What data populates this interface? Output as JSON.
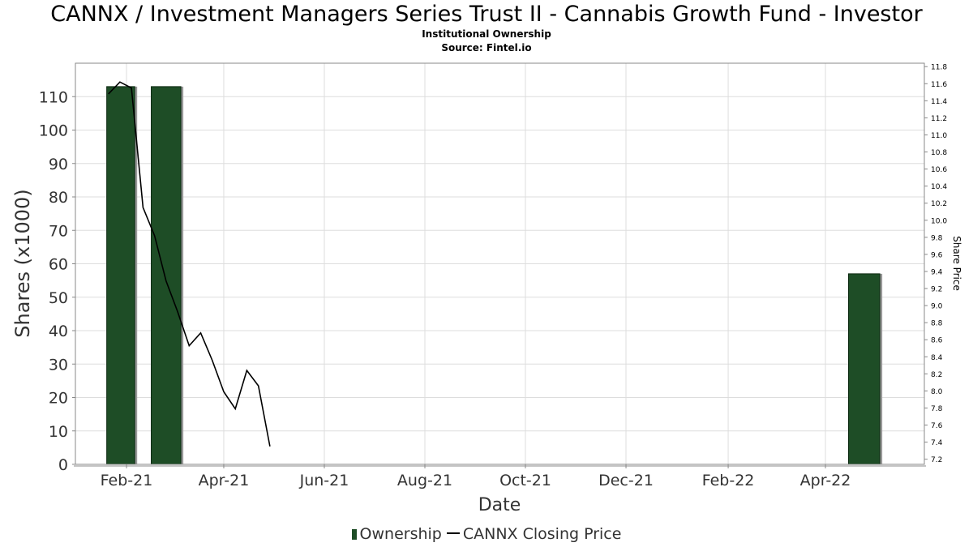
{
  "title": "CANNX / Investment Managers Series Trust II - Cannabis Growth Fund - Investor",
  "subtitle_1": "Institutional Ownership",
  "subtitle_2": "Source: Fintel.io",
  "colors": {
    "bar_fill": "#1e4d26",
    "bar_shadow": "#999999",
    "price_line": "#000000",
    "grid": "#dddddd"
  },
  "chart_data": {
    "type": "bar",
    "title": "CANNX / Investment Managers Series Trust II - Cannabis Growth Fund - Investor",
    "xlabel": "Date",
    "ylabel": "Shares (x1000)",
    "y2label": "Share Price",
    "x_range": [
      "2021-01-01",
      "2022-05-31"
    ],
    "x_ticks": [
      {
        "date": "2021-02-01",
        "label": "Feb-21"
      },
      {
        "date": "2021-04-01",
        "label": "Apr-21"
      },
      {
        "date": "2021-06-01",
        "label": "Jun-21"
      },
      {
        "date": "2021-08-01",
        "label": "Aug-21"
      },
      {
        "date": "2021-10-01",
        "label": "Oct-21"
      },
      {
        "date": "2021-12-01",
        "label": "Dec-21"
      },
      {
        "date": "2022-02-01",
        "label": "Feb-22"
      },
      {
        "date": "2022-04-01",
        "label": "Apr-22"
      }
    ],
    "ylim": [
      0,
      120
    ],
    "y_ticks": [
      0,
      10,
      20,
      30,
      40,
      50,
      60,
      70,
      80,
      90,
      100,
      110
    ],
    "y2lim": [
      7.14,
      11.84
    ],
    "y2_ticks": [
      "7.2",
      "7.4",
      "7.6",
      "7.8",
      "8.0",
      "8.2",
      "8.4",
      "8.6",
      "8.8",
      "9.0",
      "9.2",
      "9.4",
      "9.6",
      "9.8",
      "10.0",
      "10.2",
      "10.4",
      "10.6",
      "10.8",
      "11.0",
      "11.2",
      "11.4",
      "11.6",
      "11.8"
    ],
    "grid": true,
    "legend_position": "bottom-center",
    "series": [
      {
        "name": "Ownership",
        "kind": "bar",
        "bars": [
          {
            "start": "2021-01-20",
            "end": "2021-02-06",
            "value": 113
          },
          {
            "start": "2021-02-16",
            "end": "2021-03-06",
            "value": 113
          },
          {
            "start": "2022-04-15",
            "end": "2022-05-04",
            "value": 57
          }
        ]
      },
      {
        "name": "CANNX Closing Price",
        "kind": "line",
        "points": [
          {
            "date": "2021-01-21",
            "value": 11.48
          },
          {
            "date": "2021-01-28",
            "value": 11.62
          },
          {
            "date": "2021-02-04",
            "value": 11.55
          },
          {
            "date": "2021-02-11",
            "value": 10.15
          },
          {
            "date": "2021-02-18",
            "value": 9.82
          },
          {
            "date": "2021-02-25",
            "value": 9.29
          },
          {
            "date": "2021-03-04",
            "value": 8.93
          },
          {
            "date": "2021-03-11",
            "value": 8.53
          },
          {
            "date": "2021-03-18",
            "value": 8.68
          },
          {
            "date": "2021-03-25",
            "value": 8.36
          },
          {
            "date": "2021-04-01",
            "value": 7.99
          },
          {
            "date": "2021-04-08",
            "value": 7.79
          },
          {
            "date": "2021-04-15",
            "value": 8.24
          },
          {
            "date": "2021-04-22",
            "value": 8.06
          },
          {
            "date": "2021-04-29",
            "value": 7.35
          }
        ]
      }
    ]
  },
  "legend": {
    "ownership_label": "Ownership",
    "price_label": "CANNX Closing Price"
  }
}
